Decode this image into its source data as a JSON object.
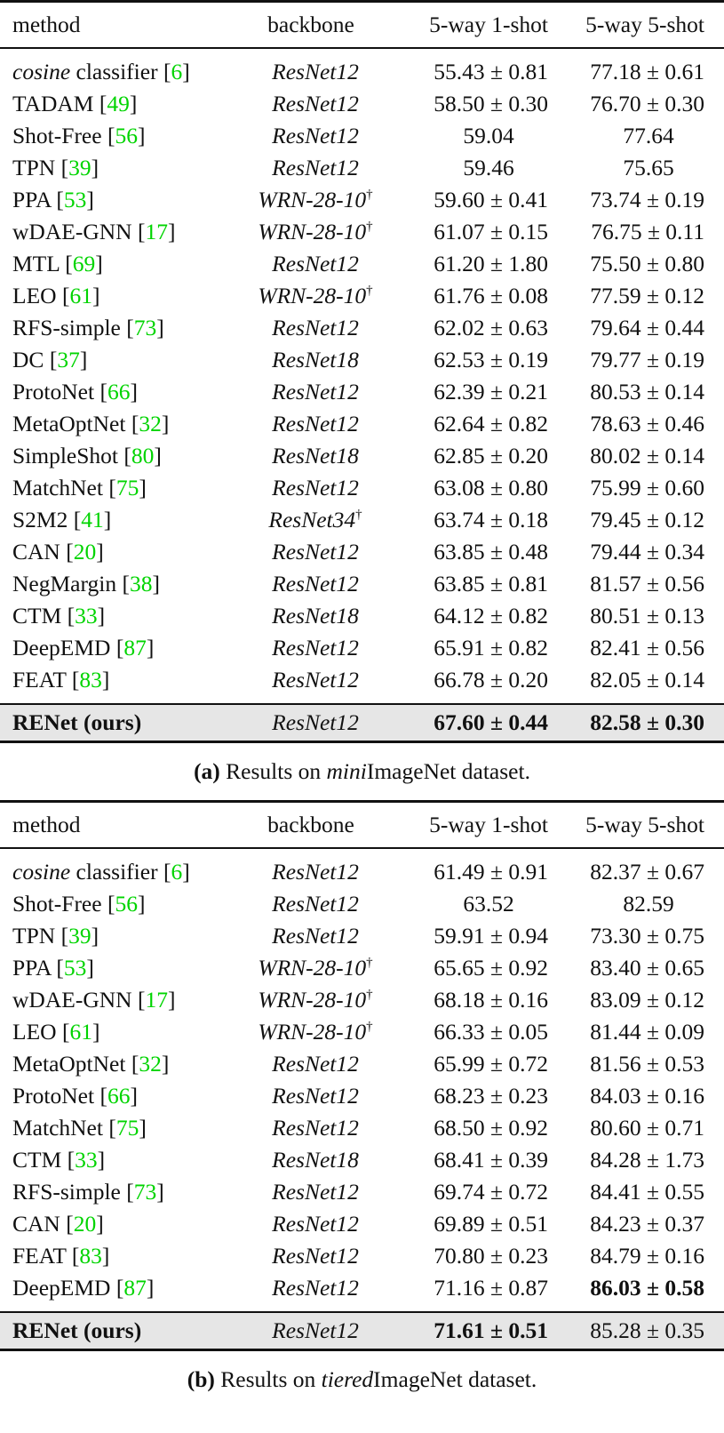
{
  "tables": [
    {
      "id": "a",
      "columns": [
        "method",
        "backbone",
        "5-way 1-shot",
        "5-way 5-shot"
      ],
      "rows": [
        {
          "method_italic": "cosine",
          "method": " classifier ",
          "cite": "6",
          "backbone": "ResNet12",
          "dagger": "",
          "one_shot": "55.43 ± 0.81",
          "five_shot": "77.18 ± 0.61"
        },
        {
          "method_italic": "",
          "method": "TADAM ",
          "cite": "49",
          "backbone": "ResNet12",
          "dagger": "",
          "one_shot": "58.50 ± 0.30",
          "five_shot": "76.70 ± 0.30"
        },
        {
          "method_italic": "",
          "method": "Shot-Free ",
          "cite": "56",
          "backbone": "ResNet12",
          "dagger": "",
          "one_shot": "59.04",
          "five_shot": "77.64",
          "no_std": true
        },
        {
          "method_italic": "",
          "method": "TPN ",
          "cite": "39",
          "backbone": "ResNet12",
          "dagger": "",
          "one_shot": "59.46",
          "five_shot": "75.65",
          "no_std": true
        },
        {
          "method_italic": "",
          "method": "PPA ",
          "cite": "53",
          "backbone": "WRN-28-10",
          "dagger": "†",
          "one_shot": "59.60 ± 0.41",
          "five_shot": "73.74 ± 0.19"
        },
        {
          "method_italic": "",
          "method": "wDAE-GNN ",
          "cite": "17",
          "backbone": "WRN-28-10",
          "dagger": "†",
          "one_shot": "61.07 ± 0.15",
          "five_shot": "76.75 ± 0.11"
        },
        {
          "method_italic": "",
          "method": "MTL ",
          "cite": "69",
          "backbone": "ResNet12",
          "dagger": "",
          "one_shot": "61.20 ± 1.80",
          "five_shot": "75.50 ± 0.80"
        },
        {
          "method_italic": "",
          "method": "LEO ",
          "cite": "61",
          "backbone": "WRN-28-10",
          "dagger": "†",
          "one_shot": "61.76 ± 0.08",
          "five_shot": "77.59 ± 0.12"
        },
        {
          "method_italic": "",
          "method": "RFS-simple ",
          "cite": "73",
          "backbone": "ResNet12",
          "dagger": "",
          "one_shot": "62.02 ± 0.63",
          "five_shot": "79.64 ± 0.44"
        },
        {
          "method_italic": "",
          "method": "DC ",
          "cite": "37",
          "backbone": "ResNet18",
          "dagger": "",
          "one_shot": "62.53 ± 0.19",
          "five_shot": "79.77 ± 0.19"
        },
        {
          "method_italic": "",
          "method": "ProtoNet ",
          "cite": "66",
          "backbone": "ResNet12",
          "dagger": "",
          "one_shot": "62.39 ± 0.21",
          "five_shot": "80.53 ± 0.14"
        },
        {
          "method_italic": "",
          "method": "MetaOptNet ",
          "cite": "32",
          "backbone": "ResNet12",
          "dagger": "",
          "one_shot": "62.64 ± 0.82",
          "five_shot": "78.63 ± 0.46"
        },
        {
          "method_italic": "",
          "method": "SimpleShot ",
          "cite": "80",
          "backbone": "ResNet18",
          "dagger": "",
          "one_shot": "62.85 ± 0.20",
          "five_shot": "80.02 ± 0.14"
        },
        {
          "method_italic": "",
          "method": "MatchNet ",
          "cite": "75",
          "backbone": "ResNet12",
          "dagger": "",
          "one_shot": "63.08 ± 0.80",
          "five_shot": "75.99 ± 0.60"
        },
        {
          "method_italic": "",
          "method": "S2M2 ",
          "cite": "41",
          "backbone": "ResNet34",
          "dagger": "†",
          "one_shot": "63.74 ± 0.18",
          "five_shot": "79.45 ± 0.12"
        },
        {
          "method_italic": "",
          "method": "CAN ",
          "cite": "20",
          "backbone": "ResNet12",
          "dagger": "",
          "one_shot": "63.85 ± 0.48",
          "five_shot": "79.44 ± 0.34"
        },
        {
          "method_italic": "",
          "method": "NegMargin ",
          "cite": "38",
          "backbone": "ResNet12",
          "dagger": "",
          "one_shot": "63.85 ± 0.81",
          "five_shot": "81.57 ± 0.56"
        },
        {
          "method_italic": "",
          "method": "CTM ",
          "cite": "33",
          "backbone": "ResNet18",
          "dagger": "",
          "one_shot": "64.12 ± 0.82",
          "five_shot": "80.51 ± 0.13"
        },
        {
          "method_italic": "",
          "method": "DeepEMD ",
          "cite": "87",
          "backbone": "ResNet12",
          "dagger": "",
          "one_shot": "65.91 ± 0.82",
          "five_shot": "82.41 ± 0.56"
        },
        {
          "method_italic": "",
          "method": "FEAT ",
          "cite": "83",
          "backbone": "ResNet12",
          "dagger": "",
          "one_shot": "66.78 ± 0.20",
          "five_shot": "82.05 ± 0.14"
        }
      ],
      "ours": {
        "method": "RENet (ours)",
        "backbone": "ResNet12",
        "one_shot": "67.60 ± 0.44",
        "five_shot": "82.58 ± 0.30",
        "one_bold": true,
        "five_bold": true
      },
      "caption": {
        "label": "(a)",
        "pre": " Results on ",
        "italic": "mini",
        "post": "ImageNet dataset."
      }
    },
    {
      "id": "b",
      "columns": [
        "method",
        "backbone",
        "5-way 1-shot",
        "5-way 5-shot"
      ],
      "rows": [
        {
          "method_italic": "cosine",
          "method": " classifier ",
          "cite": "6",
          "backbone": "ResNet12",
          "dagger": "",
          "one_shot": "61.49 ± 0.91",
          "five_shot": "82.37 ± 0.67"
        },
        {
          "method_italic": "",
          "method": "Shot-Free ",
          "cite": "56",
          "backbone": "ResNet12",
          "dagger": "",
          "one_shot": "63.52",
          "five_shot": "82.59",
          "no_std": true
        },
        {
          "method_italic": "",
          "method": "TPN ",
          "cite": "39",
          "backbone": "ResNet12",
          "dagger": "",
          "one_shot": "59.91 ± 0.94",
          "five_shot": "73.30 ± 0.75"
        },
        {
          "method_italic": "",
          "method": "PPA ",
          "cite": "53",
          "backbone": "WRN-28-10",
          "dagger": "†",
          "one_shot": "65.65 ± 0.92",
          "five_shot": "83.40 ± 0.65"
        },
        {
          "method_italic": "",
          "method": "wDAE-GNN ",
          "cite": "17",
          "backbone": "WRN-28-10",
          "dagger": "†",
          "one_shot": "68.18 ± 0.16",
          "five_shot": "83.09 ± 0.12"
        },
        {
          "method_italic": "",
          "method": "LEO ",
          "cite": "61",
          "backbone": "WRN-28-10",
          "dagger": "†",
          "one_shot": "66.33 ± 0.05",
          "five_shot": "81.44 ± 0.09"
        },
        {
          "method_italic": "",
          "method": "MetaOptNet ",
          "cite": "32",
          "backbone": "ResNet12",
          "dagger": "",
          "one_shot": "65.99 ± 0.72",
          "five_shot": "81.56 ± 0.53"
        },
        {
          "method_italic": "",
          "method": "ProtoNet ",
          "cite": "66",
          "backbone": "ResNet12",
          "dagger": "",
          "one_shot": "68.23 ± 0.23",
          "five_shot": "84.03 ± 0.16"
        },
        {
          "method_italic": "",
          "method": "MatchNet ",
          "cite": "75",
          "backbone": "ResNet12",
          "dagger": "",
          "one_shot": "68.50 ± 0.92",
          "five_shot": "80.60 ± 0.71"
        },
        {
          "method_italic": "",
          "method": "CTM ",
          "cite": "33",
          "backbone": "ResNet18",
          "dagger": "",
          "one_shot": "68.41 ± 0.39",
          "five_shot": "84.28 ± 1.73"
        },
        {
          "method_italic": "",
          "method": "RFS-simple ",
          "cite": "73",
          "backbone": "ResNet12",
          "dagger": "",
          "one_shot": "69.74 ± 0.72",
          "five_shot": "84.41 ± 0.55"
        },
        {
          "method_italic": "",
          "method": "CAN ",
          "cite": "20",
          "backbone": "ResNet12",
          "dagger": "",
          "one_shot": "69.89 ± 0.51",
          "five_shot": "84.23 ± 0.37"
        },
        {
          "method_italic": "",
          "method": "FEAT ",
          "cite": "83",
          "backbone": "ResNet12",
          "dagger": "",
          "one_shot": "70.80 ± 0.23",
          "five_shot": "84.79 ± 0.16"
        },
        {
          "method_italic": "",
          "method": "DeepEMD ",
          "cite": "87",
          "backbone": "ResNet12",
          "dagger": "",
          "one_shot": "71.16 ± 0.87",
          "five_shot": "86.03 ± 0.58",
          "five_bold": true
        }
      ],
      "ours": {
        "method": "RENet (ours)",
        "backbone": "ResNet12",
        "one_shot": "71.61 ± 0.51",
        "five_shot": "85.28 ± 0.35",
        "one_bold": true,
        "five_bold": false
      },
      "caption": {
        "label": "(b)",
        "pre": " Results on ",
        "italic": "tiered",
        "post": "ImageNet dataset."
      }
    }
  ],
  "colors": {
    "citation": "#00d400",
    "highlight_row": "#e6e6e6",
    "text": "#111111"
  }
}
